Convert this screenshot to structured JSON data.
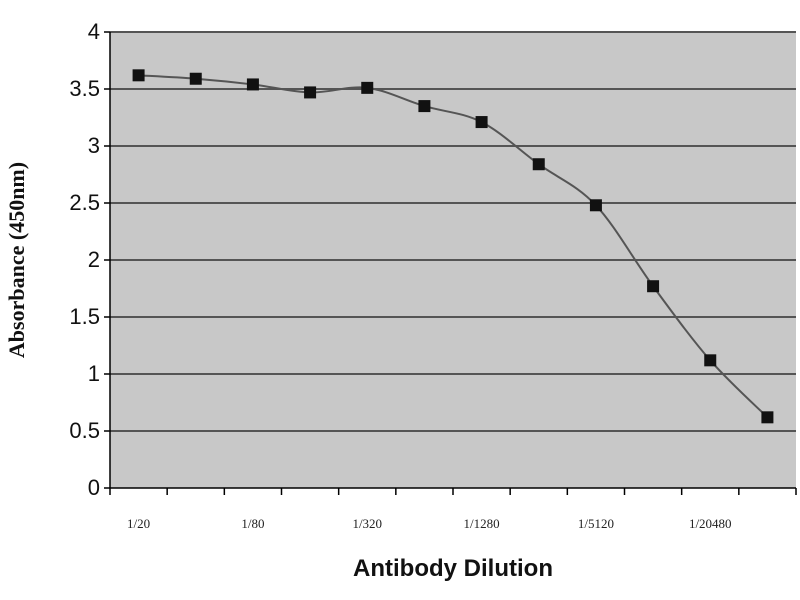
{
  "chart_data": {
    "type": "line",
    "title": "",
    "xlabel": "Antibody Dilution",
    "ylabel": "Absorbance (450nm)",
    "ylim": [
      0,
      4
    ],
    "yticks": [
      "0",
      "0.5",
      "1",
      "1.5",
      "2",
      "2.5",
      "3",
      "3.5",
      "4"
    ],
    "x_tick_labels": [
      "1/20",
      "1/80",
      "1/320",
      "1/1280",
      "1/5120",
      "1/20480"
    ],
    "grid": true,
    "legend": "none",
    "colors": {
      "plot_background": "#c8c8c8",
      "gridline": "#555555",
      "series_line": "#555555",
      "marker": "#111111"
    },
    "series": [
      {
        "values": [
          3.62,
          3.59,
          3.54,
          3.47,
          3.51,
          3.35,
          3.21,
          2.84,
          2.48,
          1.77,
          1.12,
          0.62
        ]
      }
    ]
  }
}
